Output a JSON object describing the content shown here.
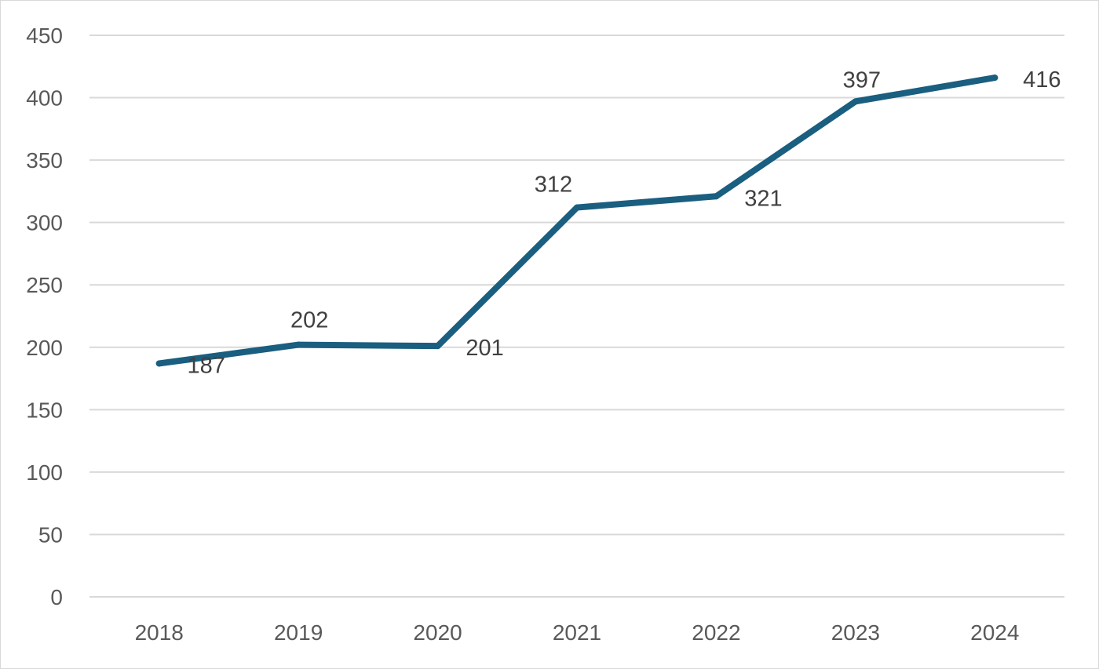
{
  "chart_data": {
    "type": "line",
    "title": "",
    "xlabel": "",
    "ylabel": "",
    "categories": [
      "2018",
      "2019",
      "2020",
      "2021",
      "2022",
      "2023",
      "2024"
    ],
    "series": [
      {
        "values": [
          187,
          202,
          201,
          312,
          321,
          397,
          416
        ],
        "data_labels": [
          "187",
          "202",
          "201",
          "312",
          "321",
          "397",
          "416"
        ],
        "color": "#1a5e80"
      }
    ],
    "ylim": [
      0,
      450
    ],
    "yticks": [
      0,
      50,
      100,
      150,
      200,
      250,
      300,
      350,
      400,
      450
    ],
    "ytick_labels": [
      "0",
      "50",
      "100",
      "150",
      "200",
      "250",
      "300",
      "350",
      "400",
      "450"
    ],
    "grid": true,
    "legend": "none",
    "gridline_color": "#d9d9d9"
  }
}
